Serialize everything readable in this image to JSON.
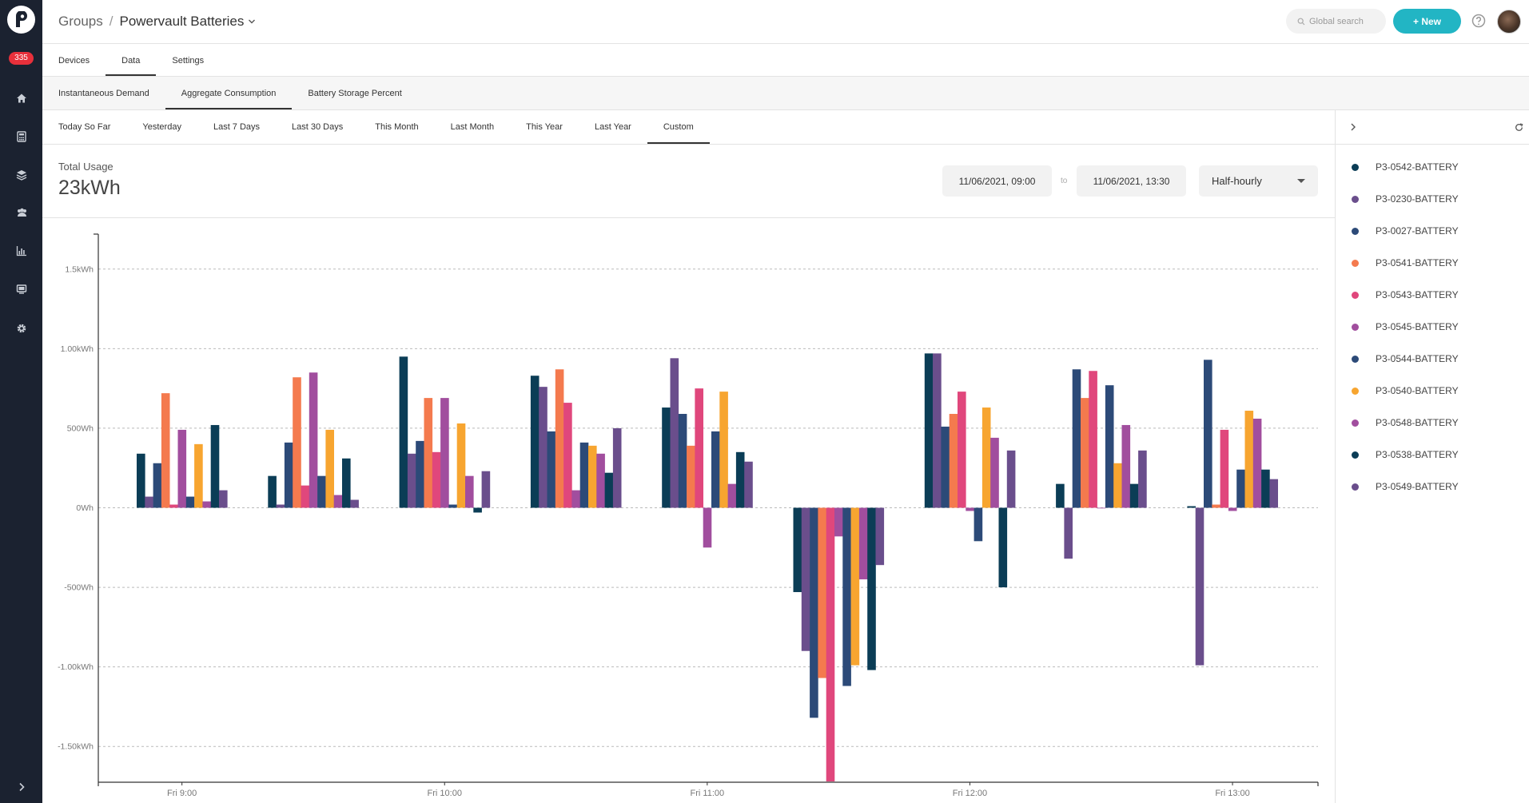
{
  "sidebar": {
    "badge": "335",
    "icons": [
      "home-icon",
      "calculator-icon",
      "layers-icon",
      "users-icon",
      "bar-chart-icon",
      "monitor-icon",
      "gear-icon"
    ],
    "collapse_icon": "chevron-right-icon"
  },
  "header": {
    "crumb_root": "Groups",
    "crumb_sep": "/",
    "crumb_current": "Powervault Batteries",
    "search_placeholder": "Global search",
    "new_label": "+ New"
  },
  "tabs": {
    "main": [
      {
        "label": "Devices",
        "active": false
      },
      {
        "label": "Data",
        "active": true
      },
      {
        "label": "Settings",
        "active": false
      }
    ],
    "sub": [
      {
        "label": "Instantaneous Demand",
        "active": false
      },
      {
        "label": "Aggregate Consumption",
        "active": true
      },
      {
        "label": "Battery Storage Percent",
        "active": false
      }
    ],
    "range": [
      {
        "label": "Today So Far",
        "active": false
      },
      {
        "label": "Yesterday",
        "active": false
      },
      {
        "label": "Last 7 Days",
        "active": false
      },
      {
        "label": "Last 30 Days",
        "active": false
      },
      {
        "label": "This Month",
        "active": false
      },
      {
        "label": "Last Month",
        "active": false
      },
      {
        "label": "This Year",
        "active": false
      },
      {
        "label": "Last Year",
        "active": false
      },
      {
        "label": "Custom",
        "active": true
      }
    ]
  },
  "summary": {
    "label": "Total Usage",
    "value": "23kWh",
    "from": "11/06/2021, 09:00",
    "to_label": "to",
    "to": "11/06/2021, 13:30",
    "interval": "Half-hourly"
  },
  "chart_data": {
    "type": "bar",
    "title": "",
    "xlabel": "",
    "ylabel": "",
    "ylim": [
      -1.72,
      1.72
    ],
    "yticks": [
      {
        "v": 1.5,
        "label": "1.5kWh"
      },
      {
        "v": 1.0,
        "label": "1.00kWh"
      },
      {
        "v": 0.5,
        "label": "500Wh"
      },
      {
        "v": 0,
        "label": "0Wh"
      },
      {
        "v": -0.5,
        "label": "-500Wh"
      },
      {
        "v": -1.0,
        "label": "-1.00kWh"
      },
      {
        "v": -1.5,
        "label": "-1.50kWh"
      }
    ],
    "x": [
      "09:00",
      "09:30",
      "10:00",
      "10:30",
      "11:00",
      "11:30",
      "12:00",
      "12:30",
      "13:00"
    ],
    "xticks": [
      {
        "slot": 0,
        "label": "Fri 9:00"
      },
      {
        "slot": 2,
        "label": "Fri 10:00"
      },
      {
        "slot": 4,
        "label": "Fri 11:00"
      },
      {
        "slot": 6,
        "label": "Fri 12:00"
      },
      {
        "slot": 8,
        "label": "Fri 13:00"
      }
    ],
    "grid": true,
    "series": [
      {
        "name": "P3-0542-BATTERY",
        "color": "#0b3d56",
        "values": [
          0.34,
          0.2,
          0.95,
          0.83,
          0.63,
          -0.53,
          0.97,
          0.15,
          0.01
        ]
      },
      {
        "name": "P3-0230-BATTERY",
        "color": "#6a4e8c",
        "values": [
          0.07,
          0.02,
          0.34,
          0.76,
          0.94,
          -0.9,
          0.97,
          -0.32,
          -0.99
        ]
      },
      {
        "name": "P3-0027-BATTERY",
        "color": "#2c4a78",
        "values": [
          0.28,
          0.41,
          0.42,
          0.48,
          0.59,
          -1.32,
          0.51,
          0.87,
          0.93
        ]
      },
      {
        "name": "P3-0541-BATTERY",
        "color": "#f47a4e",
        "values": [
          0.72,
          0.82,
          0.69,
          0.87,
          0.39,
          -1.07,
          0.59,
          0.69,
          0.02
        ]
      },
      {
        "name": "P3-0543-BATTERY",
        "color": "#e0477c",
        "values": [
          0.02,
          0.14,
          0.35,
          0.66,
          0.75,
          -1.72,
          0.73,
          0.86,
          0.49
        ]
      },
      {
        "name": "P3-0545-BATTERY",
        "color": "#a14e9e",
        "values": [
          0.49,
          0.85,
          0.69,
          0.11,
          -0.25,
          -0.18,
          -0.02,
          0.0,
          -0.02
        ]
      },
      {
        "name": "P3-0544-BATTERY",
        "color": "#2c4a78",
        "values": [
          0.07,
          0.2,
          0.02,
          0.41,
          0.48,
          -1.12,
          -0.21,
          0.77,
          0.24
        ]
      },
      {
        "name": "P3-0540-BATTERY",
        "color": "#f7a530",
        "values": [
          0.4,
          0.49,
          0.53,
          0.39,
          0.73,
          -0.99,
          0.63,
          0.28,
          0.61
        ]
      },
      {
        "name": "P3-0548-BATTERY",
        "color": "#a14e9e",
        "values": [
          0.04,
          0.08,
          0.2,
          0.34,
          0.15,
          -0.45,
          0.44,
          0.52,
          0.56
        ]
      },
      {
        "name": "P3-0538-BATTERY",
        "color": "#0b3d56",
        "values": [
          0.52,
          0.31,
          -0.03,
          0.22,
          0.35,
          -1.02,
          -0.5,
          0.15,
          0.24
        ]
      },
      {
        "name": "P3-0549-BATTERY",
        "color": "#6a4e8c",
        "values": [
          0.11,
          0.05,
          0.23,
          0.5,
          0.29,
          -0.36,
          0.36,
          0.36,
          0.18
        ]
      }
    ]
  }
}
